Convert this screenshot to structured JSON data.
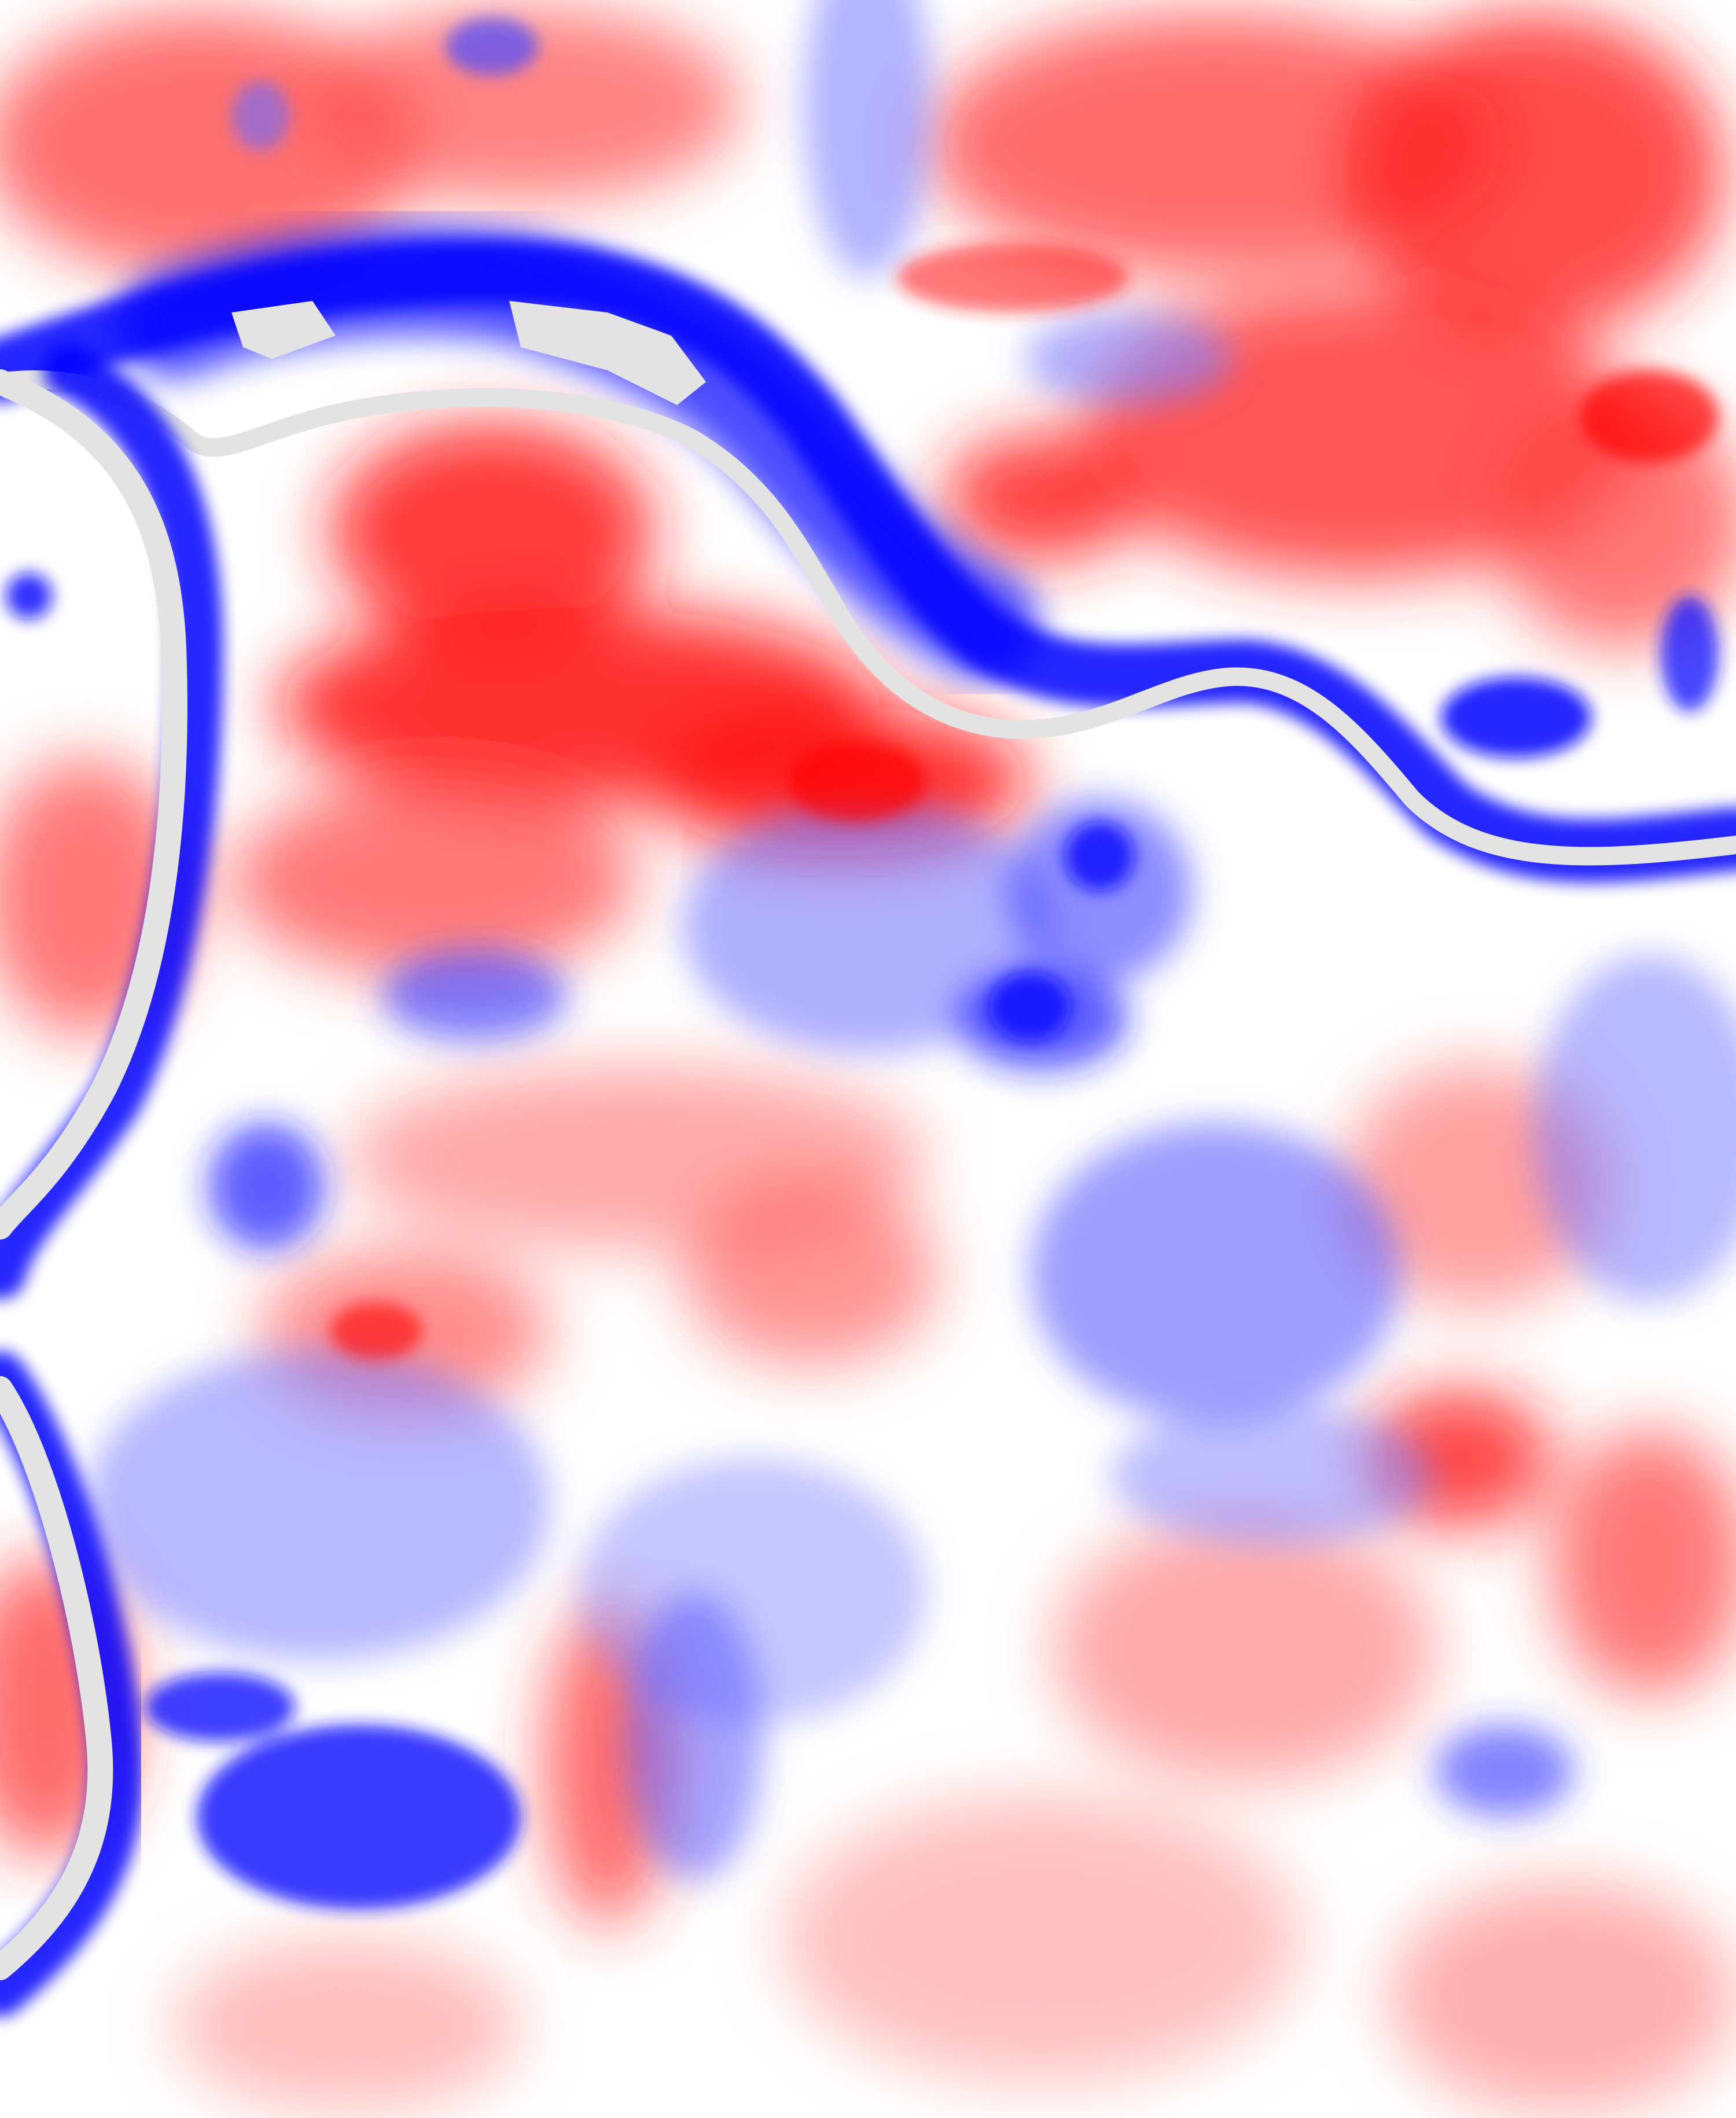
{
  "map": {
    "type": "diverging-raster-heatmap",
    "colormap": {
      "low": "#0000ff",
      "mid": "#ffffff",
      "high": "#ff0000",
      "nodata": "#e3e3e3"
    },
    "features": [
      {
        "name": "river-main-channel",
        "fill": "#e3e3e3",
        "halo": "#0000ff"
      },
      {
        "name": "river-western-branch",
        "fill": "#e3e3e3",
        "halo": "#0000ff"
      }
    ],
    "legend": null,
    "title": null
  }
}
